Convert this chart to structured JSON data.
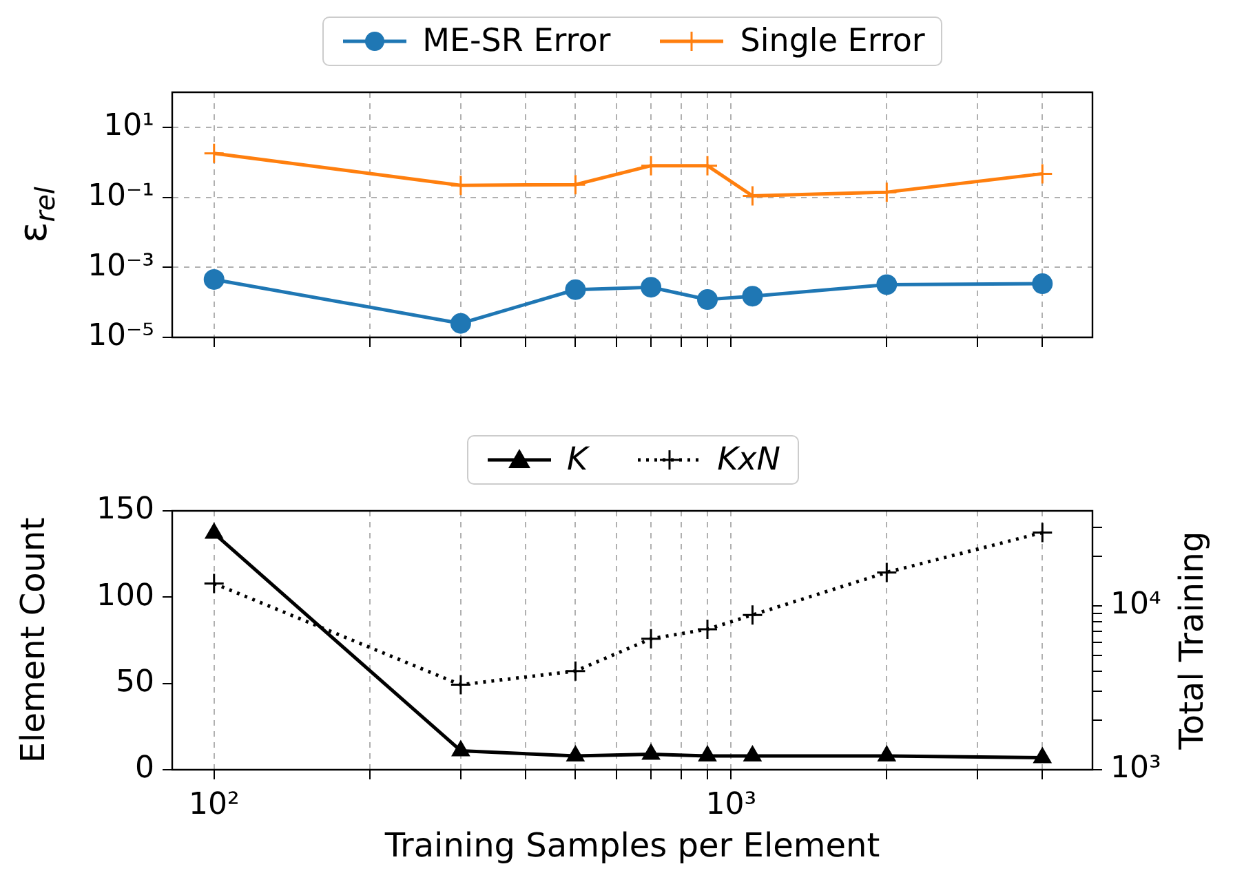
{
  "chart_data": [
    {
      "type": "line",
      "ylabel": "ε$_{rel}$",
      "x": [
        100,
        300,
        500,
        700,
        900,
        1100,
        2000,
        4000
      ],
      "log": "xy",
      "grid": true,
      "legend": "top",
      "tick_labels": "y",
      "xlim": [
        83,
        5000
      ],
      "xticks": [
        {
          "value": 100,
          "label": null
        },
        {
          "value": 200,
          "label": null
        },
        {
          "value": 300,
          "label": null
        },
        {
          "value": 400,
          "label": null
        },
        {
          "value": 500,
          "label": null
        },
        {
          "value": 600,
          "label": null
        },
        {
          "value": 700,
          "label": null
        },
        {
          "value": 800,
          "label": null
        },
        {
          "value": 900,
          "label": null
        },
        {
          "value": 1000,
          "label": null
        },
        {
          "value": 2000,
          "label": null
        },
        {
          "value": 3000,
          "label": null
        },
        {
          "value": 4000,
          "label": null
        }
      ],
      "ylim": [
        1e-05,
        100
      ],
      "yticks": [
        {
          "value": 1e-05,
          "label": "10⁻⁵"
        },
        {
          "value": 0.001,
          "label": "10⁻³"
        },
        {
          "value": 0.1,
          "label": "10⁻¹"
        },
        {
          "value": 10,
          "label": "10¹"
        }
      ],
      "series": [
        {
          "name": "ME-SR Error",
          "color": "#1f77b4",
          "marker": "circle",
          "line_style": "solid",
          "values": [
            0.00045,
            2.5e-05,
            0.00023,
            0.00027,
            0.00012,
            0.00015,
            0.00032,
            0.00034
          ]
        },
        {
          "name": "Single Error",
          "color": "#ff7f0e",
          "marker": "cross",
          "line_style": "solid",
          "values": [
            1.8,
            0.22,
            0.23,
            0.8,
            0.8,
            0.11,
            0.14,
            0.47
          ]
        }
      ]
    },
    {
      "type": "line",
      "xlabel": "Training Samples per Element",
      "ylabel": "Element Count",
      "x": [
        100,
        300,
        500,
        700,
        900,
        1100,
        2000,
        4000
      ],
      "log": "x",
      "grid": "x",
      "legend": "top",
      "xlim": [
        83,
        5000
      ],
      "xticks": [
        {
          "value": 100,
          "label": "10²"
        },
        {
          "value": 200,
          "label": null
        },
        {
          "value": 300,
          "label": null
        },
        {
          "value": 400,
          "label": null
        },
        {
          "value": 500,
          "label": null
        },
        {
          "value": 600,
          "label": null
        },
        {
          "value": 700,
          "label": null
        },
        {
          "value": 800,
          "label": null
        },
        {
          "value": 900,
          "label": null
        },
        {
          "value": 1000,
          "label": "10³"
        },
        {
          "value": 2000,
          "label": null
        },
        {
          "value": 3000,
          "label": null
        },
        {
          "value": 4000,
          "label": null
        }
      ],
      "ylim": [
        0,
        150
      ],
      "yticks": [
        0,
        50,
        100,
        150
      ],
      "series": [
        {
          "name": "K",
          "color": "#000000",
          "marker": "triangle",
          "line_style": "solid",
          "values": [
            137,
            11,
            8,
            9,
            8,
            8,
            8,
            7
          ]
        }
      ]
    },
    {
      "type": "line",
      "ylabel": "Total Training",
      "x": [
        100,
        300,
        500,
        700,
        900,
        1100,
        2000,
        4000
      ],
      "log": "xy",
      "legend": "top",
      "tick_labels": "y",
      "xlim": [
        83,
        5000
      ],
      "xticks": [
        {
          "value": 100,
          "label": null
        },
        {
          "value": 200,
          "label": null
        },
        {
          "value": 300,
          "label": null
        },
        {
          "value": 400,
          "label": null
        },
        {
          "value": 500,
          "label": null
        },
        {
          "value": 600,
          "label": null
        },
        {
          "value": 700,
          "label": null
        },
        {
          "value": 800,
          "label": null
        },
        {
          "value": 900,
          "label": null
        },
        {
          "value": 1000,
          "label": null
        },
        {
          "value": 2000,
          "label": null
        },
        {
          "value": 3000,
          "label": null
        },
        {
          "value": 4000,
          "label": null
        }
      ],
      "ylim": [
        1000,
        38000
      ],
      "yticks": [
        {
          "value": 1000,
          "label": "10³"
        },
        {
          "value": 2000,
          "label": null
        },
        {
          "value": 3000,
          "label": null
        },
        {
          "value": 4000,
          "label": null
        },
        {
          "value": 5000,
          "label": null
        },
        {
          "value": 6000,
          "label": null
        },
        {
          "value": 7000,
          "label": null
        },
        {
          "value": 8000,
          "label": null
        },
        {
          "value": 9000,
          "label": null
        },
        {
          "value": 10000,
          "label": "10⁴"
        },
        {
          "value": 20000,
          "label": null
        },
        {
          "value": 30000,
          "label": null
        }
      ],
      "series": [
        {
          "name": "KxN",
          "color": "#000000",
          "marker": "cross",
          "line_style": "dotted",
          "values": [
            13700,
            3300,
            4000,
            6300,
            7200,
            8800,
            16000,
            28000
          ]
        }
      ]
    }
  ]
}
